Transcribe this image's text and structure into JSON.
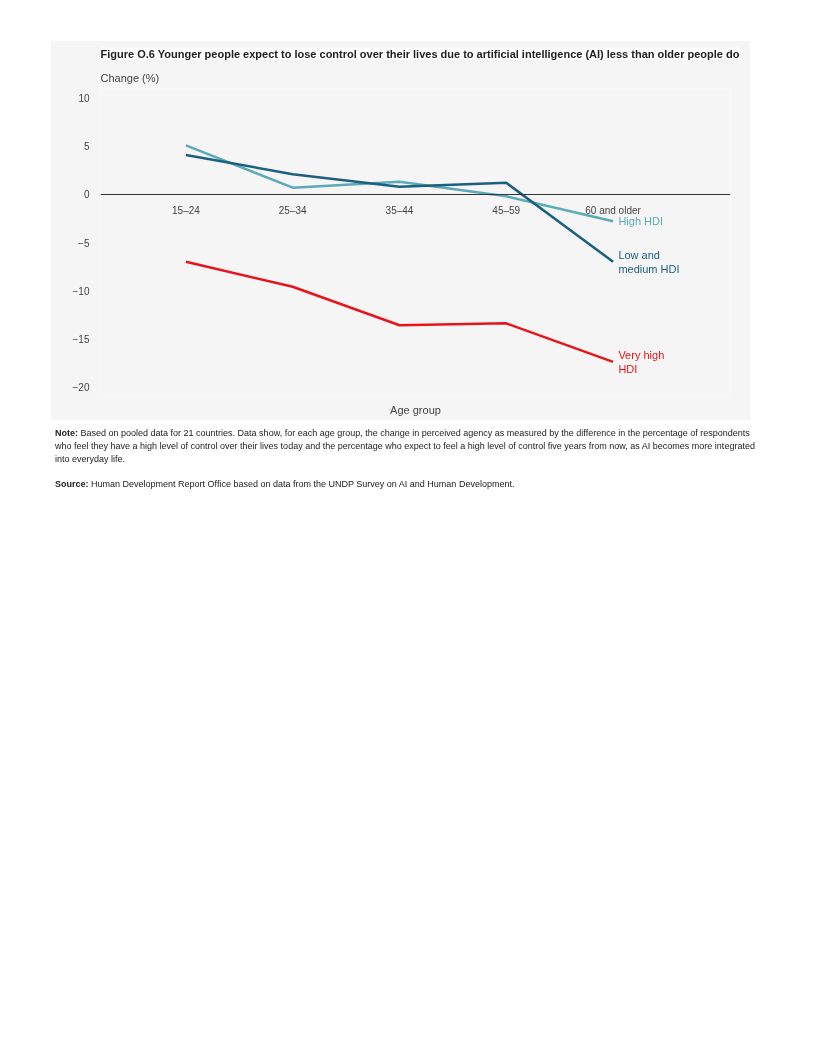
{
  "chart_data": {
    "type": "line",
    "title": "Figure O.6 Younger people expect to lose control over their lives due to artificial intelligence (AI) less than older people do",
    "ylabel": "Change (%)",
    "xlabel": "Age group",
    "categories": [
      "15–24",
      "25–34",
      "35–44",
      "45–59",
      "60 and older"
    ],
    "series": [
      {
        "name": "High HDI",
        "color": "#5aabb8",
        "values": [
          5.1,
          0.7,
          1.3,
          -0.2,
          -2.8
        ]
      },
      {
        "name": "Low and medium HDI",
        "color": "#1c5f80",
        "values": [
          4.1,
          2.1,
          0.8,
          1.2,
          -7.0
        ]
      },
      {
        "name": "Very high HDI",
        "color": "#e8141b",
        "values": [
          -7.0,
          -9.6,
          -13.6,
          -13.4,
          -17.4
        ]
      }
    ],
    "ylim": [
      -21,
      11
    ],
    "yticks": [
      -20,
      -15,
      -10,
      -5,
      0,
      5,
      10
    ],
    "grid": false,
    "legend": false,
    "marker": "none",
    "line_style": "solid",
    "annotations": [
      "Note: Based on pooled data for 21 countries. Data show, for each age group, the change in perceived agency as measured by the difference in the percentage of respondents who feel they have a high level of control over their lives today and the percentage who expect to feel a high level of control five years from now, as AI becomes more integrated into everyday life.",
      "Source: Human Development Report Office based on data from the UNDP Survey on AI and Human Development."
    ]
  }
}
